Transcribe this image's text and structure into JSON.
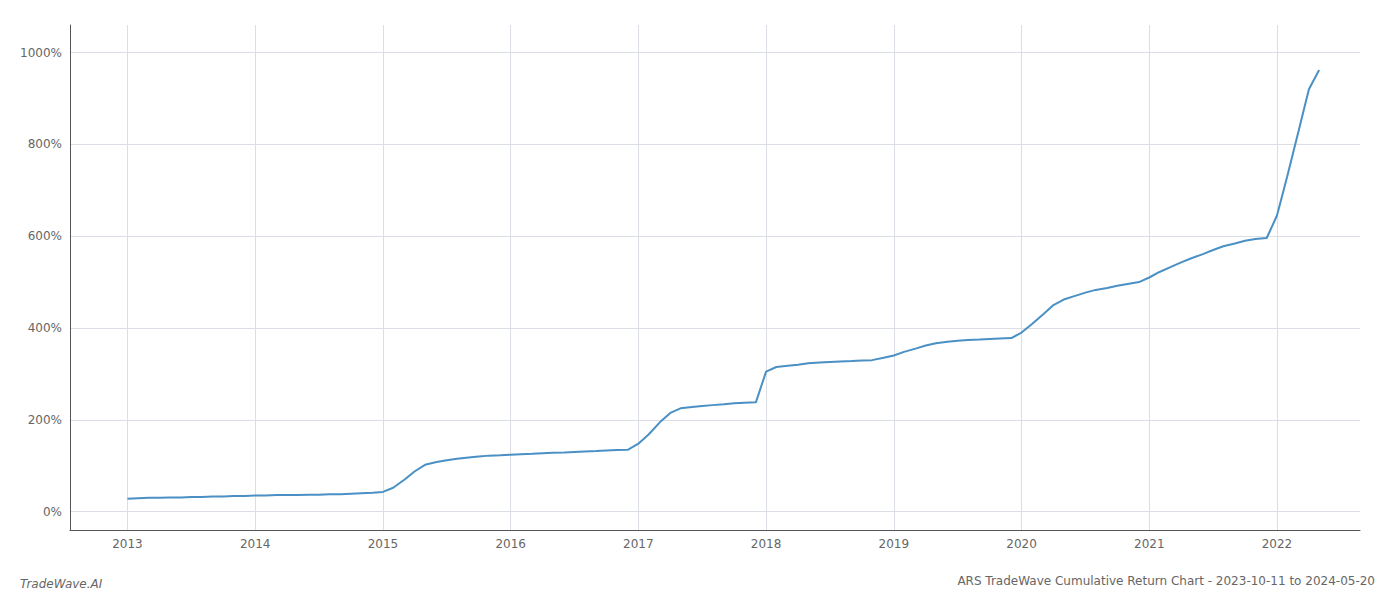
{
  "chart_data": {
    "type": "line",
    "title": "ARS TradeWave Cumulative Return Chart - 2023-10-11 to 2024-05-20",
    "annotations": [
      "TradeWave.AI"
    ],
    "color": "#4a90c4",
    "grid": true,
    "x": [
      2013.0,
      2013.08,
      2013.17,
      2013.25,
      2013.33,
      2013.42,
      2013.5,
      2013.58,
      2013.67,
      2013.75,
      2013.83,
      2013.92,
      2014.0,
      2014.08,
      2014.17,
      2014.25,
      2014.33,
      2014.42,
      2014.5,
      2014.58,
      2014.67,
      2014.75,
      2014.83,
      2014.92,
      2015.0,
      2015.08,
      2015.17,
      2015.25,
      2015.33,
      2015.42,
      2015.5,
      2015.58,
      2015.67,
      2015.75,
      2015.83,
      2015.92,
      2016.0,
      2016.08,
      2016.17,
      2016.25,
      2016.33,
      2016.42,
      2016.5,
      2016.58,
      2016.67,
      2016.75,
      2016.83,
      2016.92,
      2017.0,
      2017.08,
      2017.17,
      2017.25,
      2017.33,
      2017.42,
      2017.5,
      2017.58,
      2017.67,
      2017.75,
      2017.83,
      2017.92,
      2018.0,
      2018.08,
      2018.17,
      2018.25,
      2018.33,
      2018.42,
      2018.5,
      2018.58,
      2018.67,
      2018.75,
      2018.83,
      2018.92,
      2019.0,
      2019.08,
      2019.17,
      2019.25,
      2019.33,
      2019.42,
      2019.5,
      2019.58,
      2019.67,
      2019.75,
      2019.83,
      2019.92,
      2020.0,
      2020.08,
      2020.17,
      2020.25,
      2020.33,
      2020.42,
      2020.5,
      2020.58,
      2020.67,
      2020.75,
      2020.83,
      2020.92,
      2021.0,
      2021.08,
      2021.17,
      2021.25,
      2021.33,
      2021.42,
      2021.5,
      2021.58,
      2021.67,
      2021.75,
      2021.83,
      2021.92,
      2022.0,
      2022.08,
      2022.17,
      2022.25,
      2022.33
    ],
    "values": [
      28,
      29,
      30,
      30,
      31,
      31,
      32,
      32,
      33,
      33,
      34,
      34,
      35,
      35,
      36,
      36,
      36,
      37,
      37,
      38,
      38,
      39,
      40,
      41,
      43,
      52,
      70,
      88,
      102,
      108,
      112,
      115,
      118,
      120,
      122,
      123,
      124,
      125,
      126,
      127,
      128,
      129,
      130,
      131,
      132,
      133,
      134,
      135,
      148,
      168,
      195,
      215,
      225,
      228,
      230,
      232,
      234,
      236,
      237,
      238,
      305,
      315,
      318,
      320,
      323,
      325,
      326,
      327,
      328,
      329,
      330,
      335,
      340,
      348,
      355,
      362,
      367,
      370,
      372,
      374,
      375,
      376,
      377,
      378,
      390,
      408,
      430,
      450,
      462,
      470,
      477,
      483,
      487,
      492,
      496,
      500,
      510,
      522,
      533,
      543,
      552,
      561,
      570,
      578,
      584,
      590,
      594,
      596,
      645,
      730,
      830,
      920,
      962
    ],
    "xlim": [
      2012.55,
      2022.65
    ],
    "xticks": [
      2013,
      2014,
      2015,
      2016,
      2017,
      2018,
      2019,
      2020,
      2021,
      2022
    ],
    "ylim": [
      -40,
      1060
    ],
    "yticks": [
      {
        "value": 0,
        "label": "0%"
      },
      {
        "value": 200,
        "label": "200%"
      },
      {
        "value": 400,
        "label": "400%"
      },
      {
        "value": 600,
        "label": "600%"
      },
      {
        "value": 800,
        "label": "800%"
      },
      {
        "value": 1000,
        "label": "1000%"
      }
    ]
  }
}
